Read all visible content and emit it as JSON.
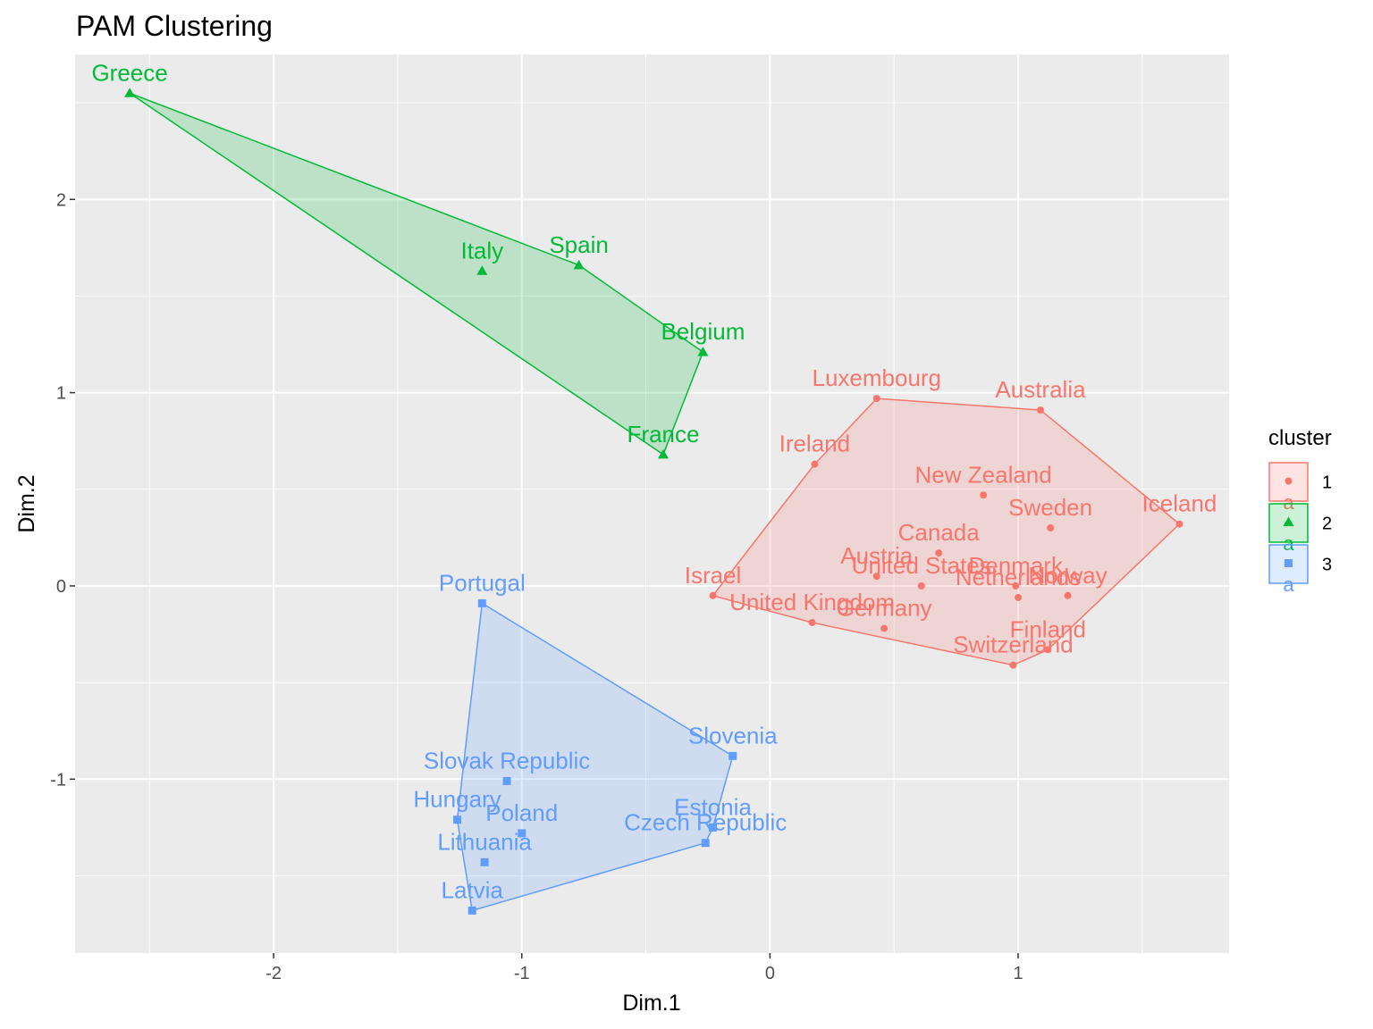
{
  "chart_data": {
    "type": "scatter",
    "title": "PAM Clustering",
    "xlabel": "Dim.1",
    "ylabel": "Dim.2",
    "xlim": [
      -2.8,
      1.85
    ],
    "ylim": [
      -1.9,
      2.75
    ],
    "xticks": [
      -2,
      -1,
      0,
      1
    ],
    "yticks": [
      -1,
      0,
      1,
      2
    ],
    "grid": true,
    "legend": {
      "title": "cluster",
      "position": "right",
      "entries": [
        "1",
        "2",
        "3"
      ]
    },
    "colors": {
      "1": "#F8766D",
      "2": "#00BA38",
      "3": "#619CFF"
    },
    "clusters": [
      {
        "name": "1",
        "marker": "circle",
        "points": [
          {
            "label": "Luxembourg",
            "x": 0.43,
            "y": 0.97
          },
          {
            "label": "Australia",
            "x": 1.09,
            "y": 0.91
          },
          {
            "label": "Ireland",
            "x": 0.18,
            "y": 0.63
          },
          {
            "label": "New Zealand",
            "x": 0.86,
            "y": 0.47
          },
          {
            "label": "Sweden",
            "x": 1.13,
            "y": 0.3
          },
          {
            "label": "Iceland",
            "x": 1.65,
            "y": 0.32
          },
          {
            "label": "Canada",
            "x": 0.68,
            "y": 0.17
          },
          {
            "label": "Austria",
            "x": 0.43,
            "y": 0.05
          },
          {
            "label": "United States",
            "x": 0.61,
            "y": 0.0
          },
          {
            "label": "Denmark",
            "x": 0.99,
            "y": 0.0
          },
          {
            "label": "Netherlands",
            "x": 1.0,
            "y": -0.06
          },
          {
            "label": "Norway",
            "x": 1.2,
            "y": -0.05
          },
          {
            "label": "Israel",
            "x": -0.23,
            "y": -0.05
          },
          {
            "label": "United Kingdom",
            "x": 0.17,
            "y": -0.19
          },
          {
            "label": "Germany",
            "x": 0.46,
            "y": -0.22
          },
          {
            "label": "Finland",
            "x": 1.12,
            "y": -0.33
          },
          {
            "label": "Switzerland",
            "x": 0.98,
            "y": -0.41
          }
        ],
        "hull": [
          "Luxembourg",
          "Australia",
          "Iceland",
          "Finland",
          "Switzerland",
          "United Kingdom",
          "Israel",
          "Ireland"
        ]
      },
      {
        "name": "2",
        "marker": "triangle",
        "points": [
          {
            "label": "Greece",
            "x": -2.58,
            "y": 2.55
          },
          {
            "label": "Italy",
            "x": -1.16,
            "y": 1.63
          },
          {
            "label": "Spain",
            "x": -0.77,
            "y": 1.66
          },
          {
            "label": "Belgium",
            "x": -0.27,
            "y": 1.21
          },
          {
            "label": "France",
            "x": -0.43,
            "y": 0.68
          }
        ],
        "hull": [
          "Greece",
          "Spain",
          "Belgium",
          "France"
        ]
      },
      {
        "name": "3",
        "marker": "square",
        "points": [
          {
            "label": "Portugal",
            "x": -1.16,
            "y": -0.09
          },
          {
            "label": "Slovenia",
            "x": -0.15,
            "y": -0.88
          },
          {
            "label": "Slovak Republic",
            "x": -1.06,
            "y": -1.01
          },
          {
            "label": "Hungary",
            "x": -1.26,
            "y": -1.21
          },
          {
            "label": "Poland",
            "x": -1.0,
            "y": -1.28
          },
          {
            "label": "Estonia",
            "x": -0.23,
            "y": -1.25
          },
          {
            "label": "Czech Republic",
            "x": -0.26,
            "y": -1.33
          },
          {
            "label": "Lithuania",
            "x": -1.15,
            "y": -1.43
          },
          {
            "label": "Latvia",
            "x": -1.2,
            "y": -1.68
          }
        ],
        "hull": [
          "Portugal",
          "Slovenia",
          "Estonia",
          "Czech Republic",
          "Latvia",
          "Hungary"
        ]
      }
    ]
  }
}
